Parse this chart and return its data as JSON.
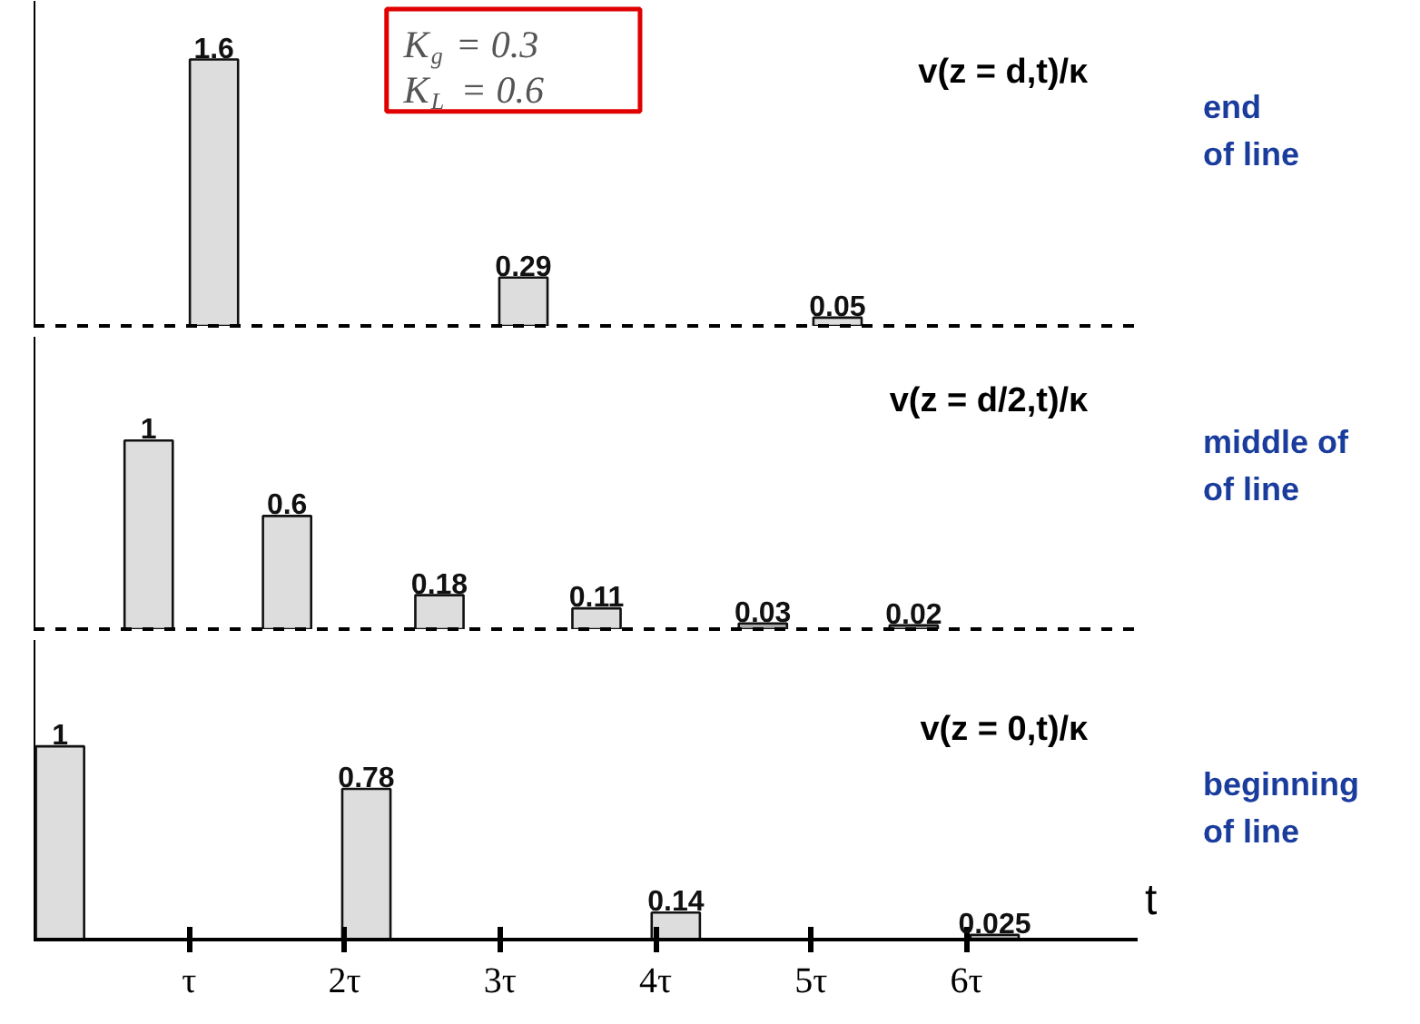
{
  "chart_data": [
    {
      "type": "bar",
      "title": "v(z = d,t)/κ",
      "x": [
        1.16,
        3.15,
        5.17
      ],
      "values": [
        1.6,
        0.29,
        0.05
      ],
      "colors": [
        "#dddddd",
        "#dddddd",
        "#dddddd"
      ],
      "xlim": [
        0,
        7.1
      ],
      "data_labels": true,
      "tick_labels": false,
      "annotations": [
        "end\nof line",
        "K$_{g}$ = 0.3\nK$_{L}$ = 0.6"
      ]
    },
    {
      "type": "bar",
      "title": "v(z = d/2,t)/κ",
      "x": [
        0.74,
        1.63,
        2.61,
        3.62,
        4.69,
        5.66
      ],
      "values": [
        1,
        0.6,
        0.18,
        0.11,
        0.03,
        0.02
      ],
      "colors": [
        "#dddddd",
        "#dddddd",
        "#dddddd",
        "#dddddd",
        "#aaaaaa",
        "#aaaaaa"
      ],
      "xlim": [
        0,
        7.1
      ],
      "data_labels": true,
      "tick_labels": false,
      "annotations": [
        "middle of\nof line"
      ]
    },
    {
      "type": "bar",
      "title": "v(z = 0,t)/κ",
      "x": [
        0.17,
        2.14,
        4.13,
        6.18
      ],
      "values": [
        1,
        0.78,
        0.14,
        0.025
      ],
      "colors": [
        "#dddddd",
        "#dddddd",
        "#dddddd",
        "#aaaaaa"
      ],
      "xlim": [
        0,
        7.1
      ],
      "xlabel": "t",
      "data_labels": true,
      "tick_labels": "x",
      "xticks": [
        {
          "value": 1,
          "label": "τ"
        },
        {
          "value": 2,
          "label": "2τ"
        },
        {
          "value": 3,
          "label": "3τ"
        },
        {
          "value": 4,
          "label": "4τ"
        },
        {
          "value": 5,
          "label": "5τ"
        },
        {
          "value": 6,
          "label": "6τ"
        }
      ],
      "annotations": [
        "beginning\nof line"
      ]
    }
  ]
}
